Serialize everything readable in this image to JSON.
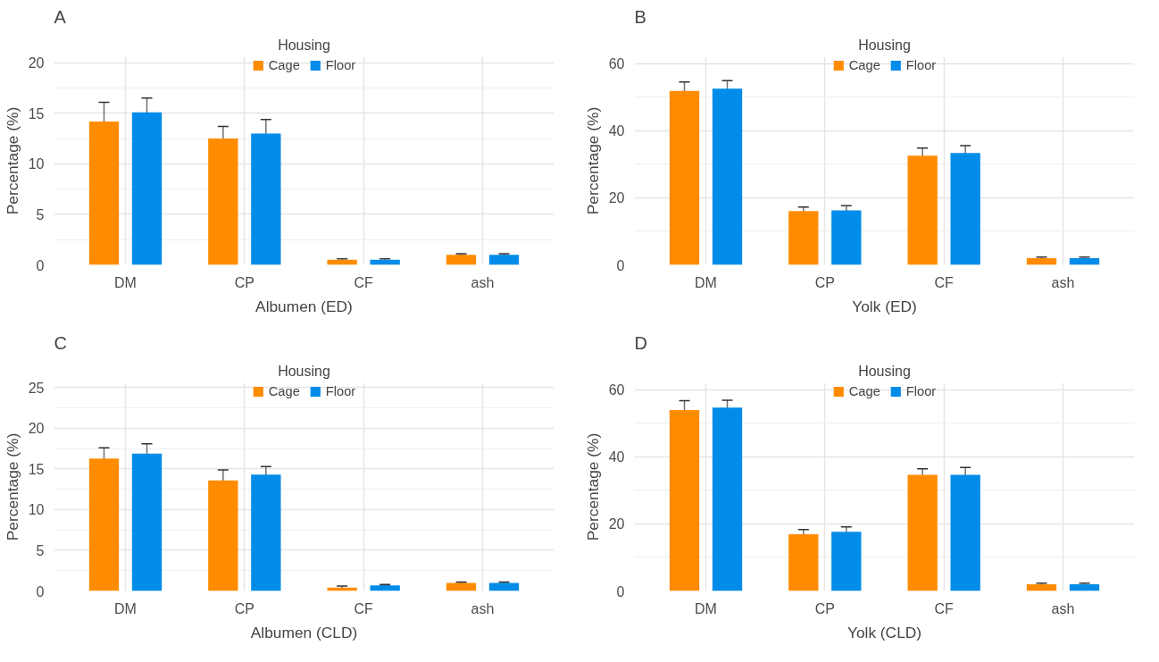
{
  "chart_data": [
    {
      "type": "bar",
      "title": "A",
      "xlabel": "Albumen (ED)",
      "ylabel": "Percentage (%)",
      "legend_title": "Housing",
      "legend": "top",
      "grid": true,
      "categories": [
        "DM",
        "CP",
        "CF",
        "ash"
      ],
      "ylim": [
        0,
        20.6
      ],
      "yticks": [
        0,
        5,
        10,
        15,
        20
      ],
      "series": [
        {
          "name": "Cage",
          "color": "#ff8c00",
          "values": [
            14.2,
            12.5,
            0.5,
            1.0
          ],
          "errors": [
            1.9,
            1.2,
            0.1,
            0.1
          ]
        },
        {
          "name": "Floor",
          "color": "#008ce8",
          "values": [
            15.1,
            13.0,
            0.5,
            1.0
          ],
          "errors": [
            1.4,
            1.4,
            0.1,
            0.1
          ]
        }
      ]
    },
    {
      "type": "bar",
      "title": "B",
      "xlabel": "Yolk (ED)",
      "ylabel": "Percentage (%)",
      "legend_title": "Housing",
      "legend": "top",
      "grid": true,
      "categories": [
        "DM",
        "CP",
        "CF",
        "ash"
      ],
      "ylim": [
        0,
        62
      ],
      "yticks": [
        0,
        20,
        40,
        60
      ],
      "series": [
        {
          "name": "Cage",
          "color": "#ff8c00",
          "values": [
            51.8,
            16.0,
            32.5,
            2.0
          ],
          "errors": [
            2.7,
            1.2,
            2.3,
            0.3
          ]
        },
        {
          "name": "Floor",
          "color": "#008ce8",
          "values": [
            52.5,
            16.2,
            33.3,
            2.0
          ],
          "errors": [
            2.4,
            1.4,
            2.2,
            0.3
          ]
        }
      ]
    },
    {
      "type": "bar",
      "title": "C",
      "xlabel": "Albumen (CLD)",
      "ylabel": "Percentage (%)",
      "legend_title": "Housing",
      "legend": "top",
      "grid": true,
      "categories": [
        "DM",
        "CP",
        "CF",
        "ash"
      ],
      "ylim": [
        0,
        25.6
      ],
      "yticks": [
        0,
        5,
        10,
        15,
        20,
        25
      ],
      "series": [
        {
          "name": "Cage",
          "color": "#ff8c00",
          "values": [
            16.3,
            13.6,
            0.4,
            1.0
          ],
          "errors": [
            1.3,
            1.3,
            0.2,
            0.1
          ]
        },
        {
          "name": "Floor",
          "color": "#008ce8",
          "values": [
            16.9,
            14.3,
            0.7,
            1.0
          ],
          "errors": [
            1.2,
            1.0,
            0.1,
            0.1
          ]
        }
      ]
    },
    {
      "type": "bar",
      "title": "D",
      "xlabel": "Yolk (CLD)",
      "ylabel": "Percentage (%)",
      "legend_title": "Housing",
      "legend": "top",
      "grid": true,
      "categories": [
        "DM",
        "CP",
        "CF",
        "ash"
      ],
      "ylim": [
        0,
        62
      ],
      "yticks": [
        0,
        20,
        40,
        60
      ],
      "series": [
        {
          "name": "Cage",
          "color": "#ff8c00",
          "values": [
            53.9,
            16.9,
            34.6,
            2.0
          ],
          "errors": [
            2.8,
            1.4,
            1.8,
            0.3
          ]
        },
        {
          "name": "Floor",
          "color": "#008ce8",
          "values": [
            54.6,
            17.6,
            34.6,
            2.0
          ],
          "errors": [
            2.2,
            1.5,
            2.2,
            0.3
          ]
        }
      ]
    }
  ]
}
